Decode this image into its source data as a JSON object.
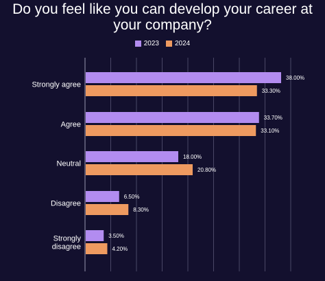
{
  "chart_data": {
    "type": "bar",
    "orientation": "horizontal",
    "title_lines": [
      "Do you feel like you can develop your career at",
      "your company?"
    ],
    "categories": [
      [
        "Strongly agree"
      ],
      [
        "Agree"
      ],
      [
        "Neutral"
      ],
      [
        "Disagree"
      ],
      [
        "Strongly",
        "disagree"
      ]
    ],
    "series": [
      {
        "name": "2023",
        "color": "#b28cf0",
        "values": [
          38.0,
          33.7,
          18.0,
          6.5,
          3.5
        ],
        "labels": [
          "38.00%",
          "33.70%",
          "18.00%",
          "6.50%",
          "3.50%"
        ]
      },
      {
        "name": "2024",
        "color": "#ee9a60",
        "values": [
          33.3,
          33.1,
          20.8,
          8.3,
          4.2
        ],
        "labels": [
          "33.30%",
          "33.10%",
          "20.80%",
          "8.30%",
          "4.20%"
        ]
      }
    ],
    "xlim": [
      0,
      40
    ],
    "grid": true,
    "legend_position": "top"
  },
  "colors": {
    "background": "#13102e",
    "grid": "#4a4766",
    "axis": "#9a98b0"
  }
}
